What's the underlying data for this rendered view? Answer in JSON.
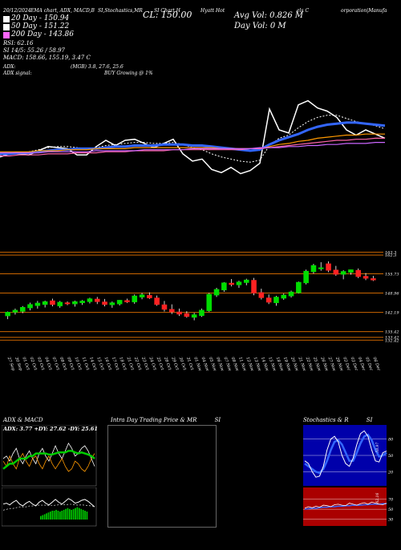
{
  "header": {
    "top_line": {
      "date": "20/12/2024",
      "left": "EMA chart, ADX, MACD,B",
      "center": "SI,Stochastics,MR",
      "code": "SI Chart H",
      "company": "Hyatt Hot",
      "tail": "els C",
      "tail2": "orporation|Manufa"
    },
    "ema20": "20 Day - 150.94",
    "ema50": "50 Day - 151.22",
    "ema200": "200 Day - 143.86",
    "close_label": "CL: 150.00",
    "avg_vol": "Avg Vol: 0.826  M",
    "day_vol": "Day Vol: 0   M",
    "rsi": "RSI: 62.16",
    "si": "SI 14/5: 55.26 / 58.97",
    "macd": "MACD: 158.66, 155.19, 3.47 C",
    "adx_line": "ADX:",
    "adx_values": "(MGB) 3.8, 27.6, 25.6",
    "adx_signal_label": "ADX  signal:",
    "adx_signal_value": "BUY Growing @ 1%"
  },
  "colors": {
    "up": "#00dd00",
    "down": "#ff2222",
    "ema_blue": "#3366ff",
    "ema_white": "#ffffff",
    "ema_orange": "#ff9900",
    "ema_pink": "#ff66aa",
    "ema_purple": "#cc66ff",
    "stoch_bg": "#0000aa",
    "rsi_bg": "#aa0000",
    "grid_orange": "#cc6600",
    "macd_green": "#00cc00"
  },
  "chart_data": [
    {
      "type": "candlestick",
      "name": "price",
      "x": [
        "27 Sep",
        "30 Sep",
        "01 Oct",
        "02 Oct",
        "03 Oct",
        "04 Oct",
        "07 Oct",
        "08 Oct",
        "09 Oct",
        "10 Oct",
        "11 Oct",
        "14 Oct",
        "15 Oct",
        "16 Oct",
        "17 Oct",
        "18 Oct",
        "21 Oct",
        "22 Oct",
        "23 Oct",
        "24 Oct",
        "25 Oct",
        "28 Oct",
        "29 Oct",
        "30 Oct",
        "31 Oct",
        "01 Nov",
        "04 Nov",
        "05 Nov",
        "06 Nov",
        "07 Nov",
        "08 Nov",
        "11 Nov",
        "12 Nov",
        "13 Nov",
        "14 Nov",
        "15 Nov",
        "18 Nov",
        "19 Nov",
        "20 Nov",
        "21 Nov",
        "22 Nov",
        "25 Nov",
        "26 Nov",
        "27 Nov",
        "29 Nov",
        "02 Dec",
        "03 Dec",
        "04 Dec",
        "05 Dec",
        "06 Dec"
      ],
      "open": [
        141.0,
        142.3,
        142.6,
        143.8,
        144.6,
        145.0,
        146.2,
        144.5,
        145.5,
        145.2,
        145.6,
        146.0,
        146.8,
        145.8,
        144.9,
        145.2,
        146.3,
        145.9,
        147.6,
        148.1,
        147.2,
        144.8,
        143.2,
        142.3,
        141.7,
        140.5,
        141.1,
        142.8,
        148.3,
        150.1,
        152.4,
        151.9,
        152.7,
        153.4,
        149.1,
        147.2,
        145.6,
        147.2,
        148.0,
        149.1,
        152.6,
        156.5,
        157.7,
        159.2,
        157.0,
        155.6,
        156.3,
        156.9,
        154.8,
        154.0
      ],
      "high": [
        142.5,
        143.5,
        144.4,
        145.6,
        146.2,
        146.3,
        147.0,
        146.2,
        146.0,
        146.3,
        146.5,
        147.3,
        147.6,
        146.9,
        146.0,
        146.5,
        147.0,
        148.5,
        149.0,
        149.2,
        148.1,
        146.2,
        145.0,
        143.5,
        142.6,
        142.0,
        143.5,
        149.0,
        150.8,
        152.8,
        153.9,
        153.3,
        154.0,
        154.3,
        150.5,
        148.5,
        148.0,
        148.8,
        149.8,
        153.0,
        157.2,
        159.2,
        159.8,
        160.1,
        158.5,
        157.0,
        157.2,
        157.6,
        156.0,
        155.0
      ],
      "low": [
        139.8,
        141.4,
        141.9,
        142.9,
        143.5,
        143.9,
        144.3,
        143.8,
        144.7,
        144.2,
        144.8,
        145.3,
        145.1,
        144.3,
        143.8,
        144.6,
        145.5,
        145.2,
        146.8,
        146.9,
        144.5,
        142.5,
        141.6,
        140.9,
        140.3,
        139.4,
        140.6,
        142.4,
        147.6,
        149.4,
        151.3,
        150.8,
        151.7,
        148.2,
        146.7,
        145.1,
        144.5,
        146.6,
        147.4,
        148.8,
        152.0,
        155.8,
        156.8,
        156.3,
        155.0,
        153.8,
        155.4,
        154.2,
        153.5,
        153.2
      ],
      "close": [
        142.2,
        142.9,
        143.9,
        144.9,
        145.4,
        145.9,
        145.0,
        145.7,
        145.3,
        145.9,
        146.1,
        146.9,
        146.0,
        145.0,
        145.5,
        146.4,
        145.9,
        147.9,
        148.3,
        147.3,
        145.0,
        143.3,
        142.4,
        141.6,
        140.8,
        141.3,
        142.9,
        148.5,
        150.2,
        152.5,
        152.0,
        152.8,
        153.5,
        149.0,
        147.4,
        145.8,
        147.5,
        148.2,
        149.3,
        152.7,
        156.6,
        158.6,
        157.8,
        157.0,
        155.6,
        156.5,
        157.1,
        154.8,
        154.2,
        153.6
      ]
    },
    {
      "type": "line",
      "name": "ema-overlay",
      "series": [
        {
          "values": [
            0.34,
            0.37,
            0.37,
            0.36,
            0.4,
            0.44,
            0.43,
            0.42,
            0.36,
            0.36,
            0.44,
            0.5,
            0.45,
            0.5,
            0.51,
            0.47,
            0.43,
            0.47,
            0.51,
            0.37,
            0.3,
            0.32,
            0.22,
            0.19,
            0.24,
            0.18,
            0.21,
            0.28,
            0.8,
            0.6,
            0.57,
            0.84,
            0.88,
            0.81,
            0.78,
            0.72,
            0.6,
            0.55,
            0.6,
            0.56,
            0.52
          ]
        },
        {
          "values": [
            0.36,
            0.37,
            0.38,
            0.39,
            0.41,
            0.43,
            0.44,
            0.44,
            0.43,
            0.42,
            0.43,
            0.45,
            0.46,
            0.47,
            0.48,
            0.48,
            0.47,
            0.47,
            0.48,
            0.46,
            0.43,
            0.41,
            0.37,
            0.34,
            0.32,
            0.3,
            0.29,
            0.31,
            0.45,
            0.52,
            0.55,
            0.62,
            0.68,
            0.72,
            0.74,
            0.74,
            0.71,
            0.68,
            0.66,
            0.64,
            0.61
          ]
        },
        {
          "values": [
            0.37,
            0.37,
            0.38,
            0.38,
            0.39,
            0.4,
            0.41,
            0.41,
            0.42,
            0.42,
            0.42,
            0.43,
            0.44,
            0.44,
            0.45,
            0.45,
            0.45,
            0.46,
            0.46,
            0.46,
            0.45,
            0.45,
            0.44,
            0.43,
            0.42,
            0.41,
            0.4,
            0.41,
            0.46,
            0.5,
            0.53,
            0.56,
            0.6,
            0.63,
            0.65,
            0.66,
            0.67,
            0.67,
            0.66,
            0.65,
            0.64
          ]
        },
        {
          "values": [
            0.39,
            0.39,
            0.39,
            0.39,
            0.4,
            0.4,
            0.4,
            0.41,
            0.41,
            0.41,
            0.42,
            0.42,
            0.42,
            0.42,
            0.43,
            0.43,
            0.43,
            0.43,
            0.43,
            0.43,
            0.43,
            0.43,
            0.43,
            0.42,
            0.42,
            0.42,
            0.42,
            0.42,
            0.44,
            0.46,
            0.47,
            0.49,
            0.5,
            0.52,
            0.53,
            0.54,
            0.55,
            0.55,
            0.56,
            0.56,
            0.56
          ]
        },
        {
          "values": [
            0.35,
            0.35,
            0.36,
            0.36,
            0.36,
            0.37,
            0.37,
            0.37,
            0.38,
            0.38,
            0.38,
            0.39,
            0.39,
            0.39,
            0.4,
            0.4,
            0.4,
            0.4,
            0.41,
            0.41,
            0.41,
            0.41,
            0.41,
            0.41,
            0.41,
            0.41,
            0.42,
            0.42,
            0.43,
            0.44,
            0.45,
            0.46,
            0.47,
            0.48,
            0.49,
            0.5,
            0.5,
            0.51,
            0.51,
            0.52,
            0.52
          ]
        },
        {
          "values": [
            0.38,
            0.38,
            0.38,
            0.38,
            0.38,
            0.39,
            0.39,
            0.39,
            0.39,
            0.39,
            0.4,
            0.4,
            0.4,
            0.4,
            0.4,
            0.41,
            0.41,
            0.41,
            0.41,
            0.41,
            0.42,
            0.42,
            0.42,
            0.42,
            0.42,
            0.42,
            0.42,
            0.43,
            0.43,
            0.43,
            0.44,
            0.44,
            0.45,
            0.45,
            0.46,
            0.46,
            0.47,
            0.47,
            0.47,
            0.48,
            0.48
          ]
        }
      ]
    },
    {
      "type": "line",
      "name": "price-levels",
      "levels": [
        {
          "label": "163.3",
          "value": 163.3
        },
        {
          "label": "162.3",
          "value": 162.3
        },
        {
          "label": "155.73",
          "value": 155.73
        },
        {
          "label": "148.96",
          "value": 148.96
        },
        {
          "label": "142.19",
          "value": 142.19
        },
        {
          "label": "135.42",
          "value": 135.42
        },
        {
          "label": "133.42",
          "value": 133.42
        },
        {
          "label": "132.42",
          "value": 132.42
        }
      ],
      "ylim": [
        128,
        166
      ]
    },
    {
      "type": "line",
      "name": "adx-macd",
      "title": "ADX  & MACD",
      "adx_text": "ADX: 3.77  +DY: 27.62  -DY: 25.61",
      "adx_series": [
        {
          "values": [
            0.5,
            0.55,
            0.45,
            0.6,
            0.7,
            0.5,
            0.4,
            0.55,
            0.65,
            0.5,
            0.4,
            0.6,
            0.7,
            0.55,
            0.45,
            0.6,
            0.75,
            0.6,
            0.5,
            0.65,
            0.8,
            0.7,
            0.55,
            0.6,
            0.7,
            0.75,
            0.65,
            0.5,
            0.35
          ]
        },
        {
          "values": [
            0.45,
            0.35,
            0.55,
            0.4,
            0.3,
            0.5,
            0.6,
            0.45,
            0.35,
            0.5,
            0.55,
            0.4,
            0.3,
            0.45,
            0.55,
            0.4,
            0.3,
            0.4,
            0.5,
            0.35,
            0.25,
            0.3,
            0.45,
            0.4,
            0.3,
            0.25,
            0.35,
            0.5,
            0.6
          ]
        },
        {
          "values": [
            0.3,
            0.35,
            0.4,
            0.4,
            0.45,
            0.5,
            0.5,
            0.5,
            0.55,
            0.55,
            0.6,
            0.6,
            0.6,
            0.6,
            0.58,
            0.58,
            0.6,
            0.62,
            0.62,
            0.62,
            0.65,
            0.65,
            0.62,
            0.6,
            0.62,
            0.6,
            0.58,
            0.55,
            0.5
          ]
        }
      ],
      "macd_hist": [
        0.2,
        0.25,
        0.3,
        0.35,
        0.4,
        0.45,
        0.5,
        0.5,
        0.55,
        0.5,
        0.45,
        0.5,
        0.55,
        0.6,
        0.65,
        0.6,
        0.55,
        0.6,
        0.65,
        0.7,
        0.65,
        0.6,
        0.55,
        0.5,
        0.45
      ]
    },
    {
      "type": "line",
      "name": "intraday",
      "title": "Intra Day Trading Price  & MR",
      "title_tail": "SI"
    },
    {
      "type": "line",
      "name": "stochastics-rsi",
      "title": "Stochastics & R",
      "title_tail": "SI",
      "stoch_levels": [
        "80",
        "50",
        "20"
      ],
      "stoch_level_values": [
        80,
        50,
        20
      ],
      "stoch_tail_label": "58.97",
      "stoch_k": {
        "values": [
          40,
          35,
          20,
          10,
          12,
          30,
          60,
          80,
          85,
          75,
          50,
          35,
          30,
          45,
          70,
          90,
          95,
          85,
          60,
          40,
          38,
          55,
          58
        ]
      },
      "stoch_d": {
        "values": [
          35,
          30,
          25,
          20,
          18,
          25,
          40,
          60,
          75,
          78,
          70,
          55,
          40,
          40,
          55,
          72,
          85,
          88,
          78,
          60,
          48,
          50,
          55
        ]
      },
      "rsi_levels": [
        "70",
        "50",
        "30"
      ],
      "rsi_level_values": [
        70,
        50,
        30
      ],
      "rsi_tail_label": "62.16",
      "rsi_line": {
        "values": [
          52,
          55,
          53,
          56,
          54,
          58,
          57,
          55,
          59,
          60,
          58,
          57,
          62,
          60,
          58,
          61,
          63,
          60,
          64,
          62,
          60,
          59,
          62
        ]
      },
      "rsi_mean": {
        "values": [
          50,
          51,
          52,
          52,
          53,
          54,
          54,
          55,
          55,
          56,
          56,
          57,
          57,
          58,
          58,
          58,
          59,
          59,
          60,
          60,
          60,
          61,
          61
        ]
      }
    }
  ]
}
